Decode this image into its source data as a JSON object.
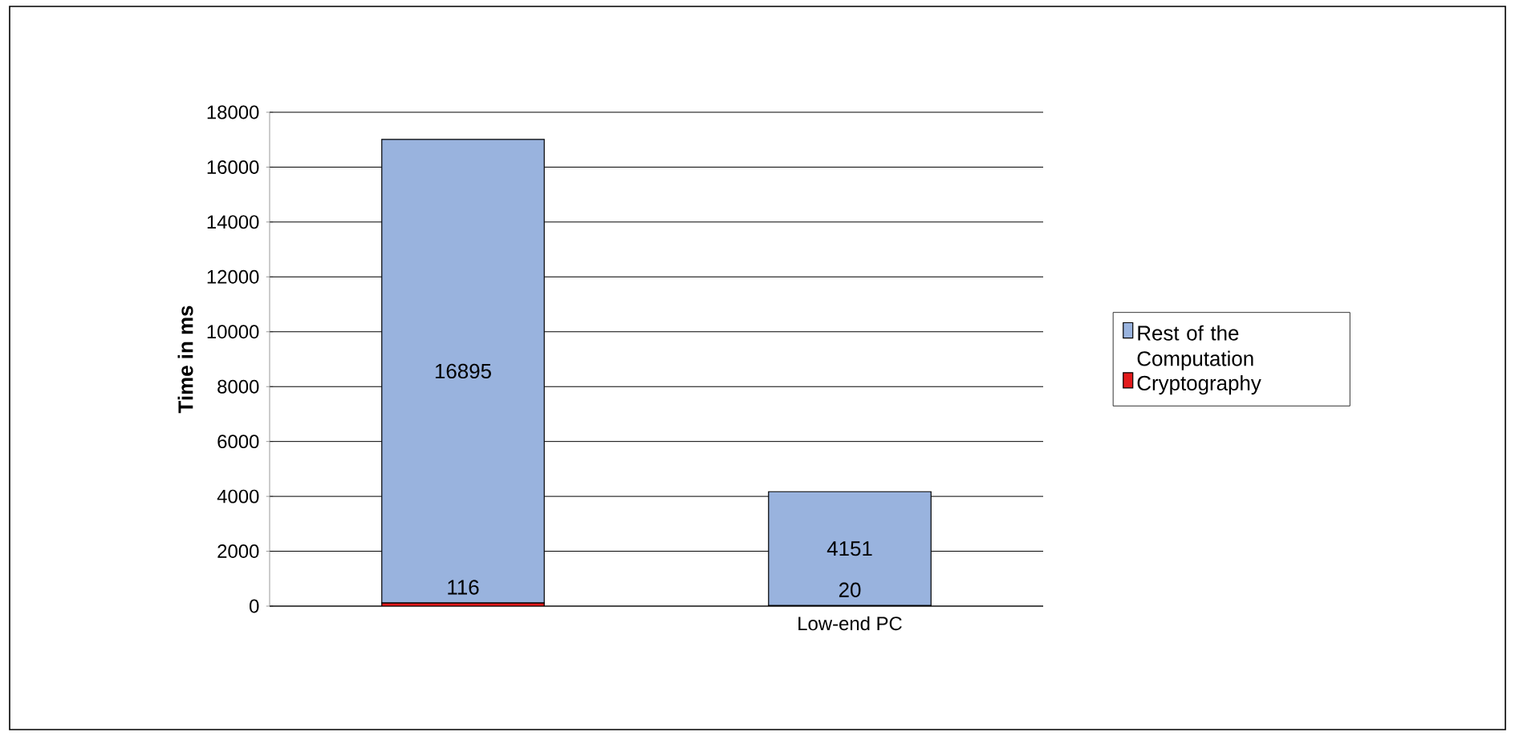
{
  "chart_data": {
    "type": "bar",
    "stacked": true,
    "ylabel": "Time in ms",
    "categories": [
      null,
      "Low-end PC"
    ],
    "series": [
      {
        "name": "Cryptography",
        "color": "#e31a1c",
        "values": [
          116,
          20
        ]
      },
      {
        "name": "Rest of the Computation",
        "color": "#99b3de",
        "values": [
          16895,
          4151
        ]
      }
    ],
    "ylim": [
      0,
      18000
    ],
    "yticks": [
      0,
      2000,
      4000,
      6000,
      8000,
      10000,
      12000,
      14000,
      16000,
      18000
    ],
    "grid": "y",
    "legend": "right",
    "data_labels": true
  }
}
